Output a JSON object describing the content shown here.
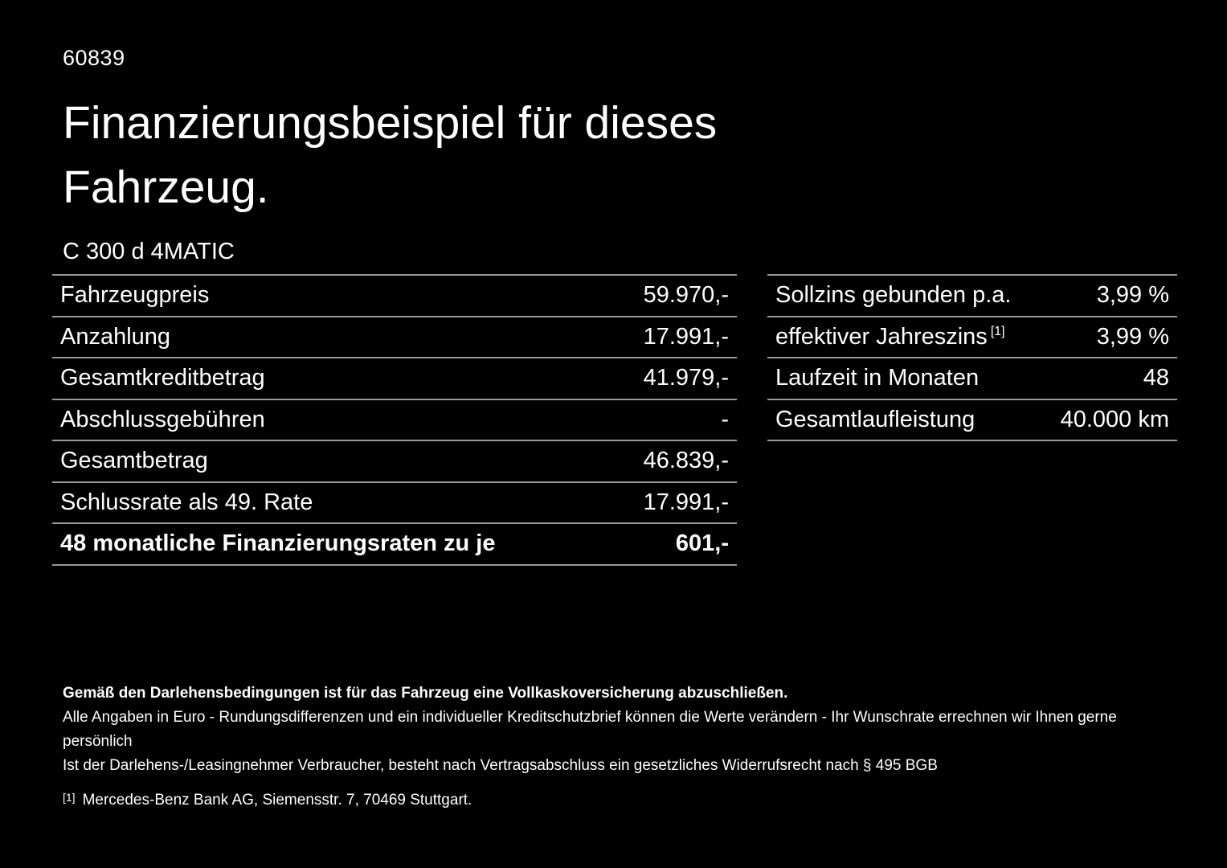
{
  "colors": {
    "background": "#000000",
    "text": "#ffffff",
    "divider": "#999999"
  },
  "header": {
    "ref_number": "60839",
    "title_lines": [
      "Finanzierungsbeispiel für dieses",
      "Fahrzeug."
    ],
    "vehicle_model": "C 300 d 4MATIC"
  },
  "financing_table": {
    "rows": [
      {
        "label": "Fahrzeugpreis",
        "value": "59.970,-"
      },
      {
        "label": "Anzahlung",
        "value": "17.991,-"
      },
      {
        "label": "Gesamtkreditbetrag",
        "value": "41.979,-"
      },
      {
        "label": "Abschlussgebühren",
        "value": "-"
      },
      {
        "label": "Gesamtbetrag",
        "value": "46.839,-"
      },
      {
        "label": "Schlussrate als 49. Rate",
        "value": "17.991,-"
      },
      {
        "label": "48 monatliche Finanzierungsraten zu je",
        "value": "601,-"
      }
    ]
  },
  "conditions_table": {
    "rows": [
      {
        "label": "Sollzins gebunden p.a.",
        "value": "3,99 %"
      },
      {
        "label": "effektiver Jahreszins",
        "footnote_marker": "[1]",
        "value": "3,99 %"
      },
      {
        "label": "Laufzeit in Monaten",
        "value": "48"
      },
      {
        "label": "Gesamtlaufleistung",
        "value": "40.000 km"
      }
    ]
  },
  "footer": {
    "insurance_note": "Gemäß den Darlehensbedingungen ist für das Fahrzeug eine Vollkaskoversicherung abzuschließen.",
    "disclaimer_line1": "Alle Angaben in Euro - Rundungsdifferenzen und ein individueller Kreditschutzbrief können die Werte verändern - Ihr Wunschrate errechnen wir Ihnen gerne persönlich",
    "disclaimer_line2": "Ist der Darlehens-/Leasingnehmer Verbraucher, besteht nach Vertragsabschluss ein gesetzliches Widerrufsrecht nach § 495 BGB",
    "footnote_marker": "[1]",
    "footnote_text": "Mercedes-Benz Bank AG, Siemensstr. 7, 70469 Stuttgart."
  }
}
